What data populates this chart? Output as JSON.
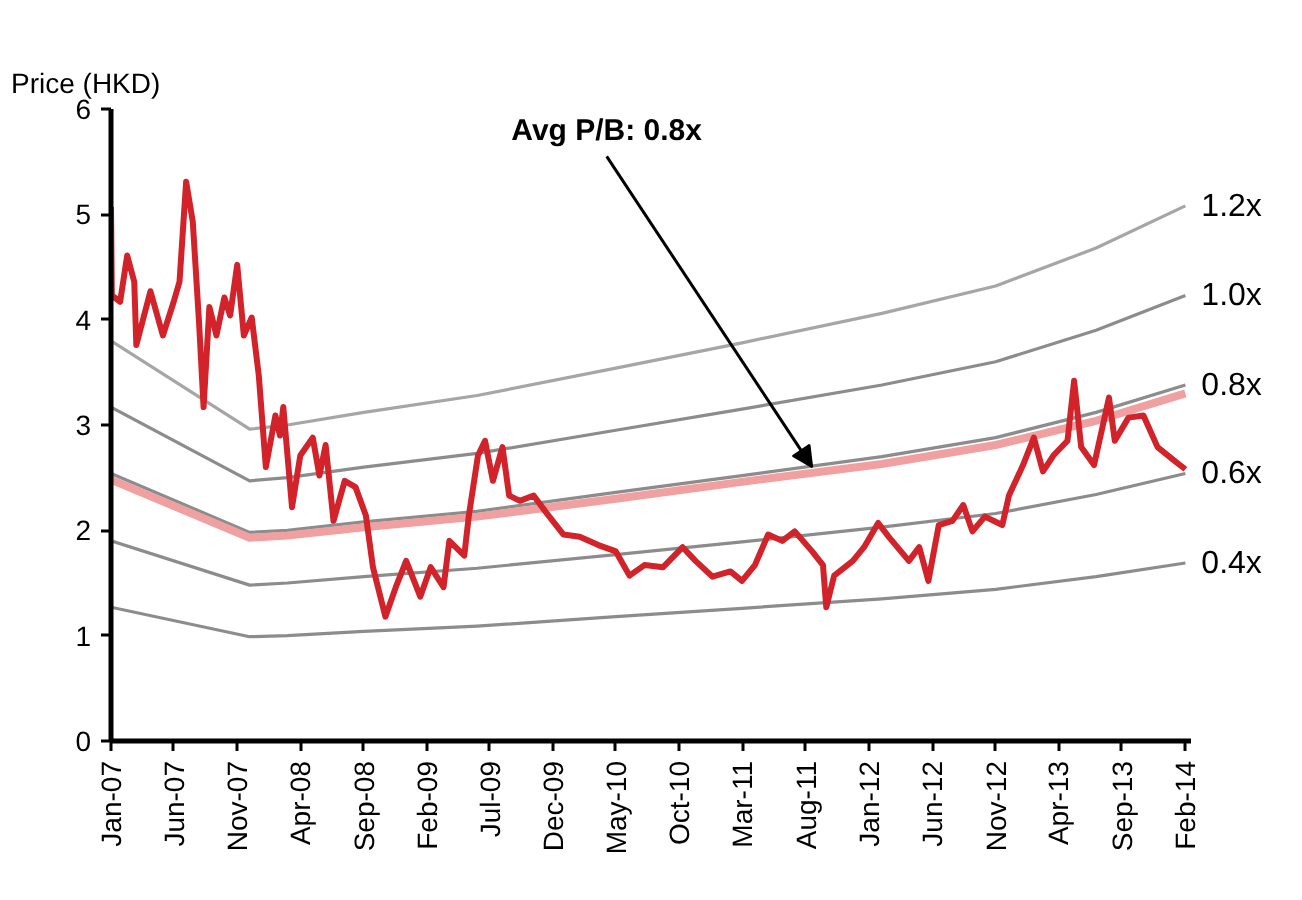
{
  "chart_data": {
    "type": "line",
    "ylabel": "Price (HKD)",
    "xlim": [
      "2007-01-01",
      "2014-02-15"
    ],
    "ylim": [
      0,
      6
    ],
    "yticks": [
      0,
      1,
      2,
      3,
      4,
      5,
      6
    ],
    "xticks": [
      {
        "value": "2007-01-01",
        "label": "Jan-07"
      },
      {
        "value": "2007-06-01",
        "label": "Jun-07"
      },
      {
        "value": "2007-11-01",
        "label": "Nov-07"
      },
      {
        "value": "2008-04-01",
        "label": "Apr-08"
      },
      {
        "value": "2008-09-01",
        "label": "Sep-08"
      },
      {
        "value": "2009-02-01",
        "label": "Feb-09"
      },
      {
        "value": "2009-07-01",
        "label": "Jul-09"
      },
      {
        "value": "2009-12-01",
        "label": "Dec-09"
      },
      {
        "value": "2010-05-01",
        "label": "May-10"
      },
      {
        "value": "2010-10-01",
        "label": "Oct-10"
      },
      {
        "value": "2011-03-01",
        "label": "Mar-11"
      },
      {
        "value": "2011-08-01",
        "label": "Aug-11"
      },
      {
        "value": "2012-01-01",
        "label": "Jan-12"
      },
      {
        "value": "2012-06-01",
        "label": "Jun-12"
      },
      {
        "value": "2012-11-01",
        "label": "Nov-12"
      },
      {
        "value": "2013-04-01",
        "label": "Apr-13"
      },
      {
        "value": "2013-09-01",
        "label": "Sep-13"
      },
      {
        "value": "2014-02-01",
        "label": "Feb-14"
      }
    ],
    "grid": false,
    "line_style": "solid",
    "annotations": [
      {
        "text": "Avg P/B: 0.8x",
        "x": "2011-08-17",
        "y": 2.6
      }
    ],
    "series": [
      {
        "name": "1.2x",
        "color": "#a6a6a6",
        "x": [
          "2007-01-01",
          "2007-12-01",
          "2008-03-01",
          "2008-09-01",
          "2009-06-01",
          "2010-05-01",
          "2011-03-01",
          "2012-02-01",
          "2012-11-01",
          "2013-07-01",
          "2014-02-01"
        ],
        "values": [
          3.8,
          2.96,
          3.0,
          3.12,
          3.28,
          3.54,
          3.78,
          4.06,
          4.32,
          4.68,
          5.08
        ]
      },
      {
        "name": "1.0x",
        "color": "#8c8c8c",
        "x": [
          "2007-01-01",
          "2007-12-01",
          "2008-03-01",
          "2008-09-01",
          "2009-06-01",
          "2010-05-01",
          "2011-03-01",
          "2012-02-01",
          "2012-11-01",
          "2013-07-01",
          "2014-02-01"
        ],
        "values": [
          3.17,
          2.47,
          2.5,
          2.6,
          2.73,
          2.95,
          3.15,
          3.38,
          3.6,
          3.9,
          4.23
        ]
      },
      {
        "name": "0.8x",
        "color": "#8c8c8c",
        "x": [
          "2007-01-01",
          "2007-12-01",
          "2008-03-01",
          "2008-09-01",
          "2009-06-01",
          "2010-05-01",
          "2011-03-01",
          "2012-02-01",
          "2012-11-01",
          "2013-07-01",
          "2014-02-01"
        ],
        "values": [
          2.54,
          1.98,
          2.0,
          2.08,
          2.18,
          2.36,
          2.52,
          2.7,
          2.88,
          3.12,
          3.38
        ]
      },
      {
        "name": "0.6x",
        "color": "#8c8c8c",
        "x": [
          "2007-01-01",
          "2007-12-01",
          "2008-03-01",
          "2008-09-01",
          "2009-06-01",
          "2010-05-01",
          "2011-03-01",
          "2012-02-01",
          "2012-11-01",
          "2013-07-01",
          "2014-02-01"
        ],
        "values": [
          1.9,
          1.48,
          1.5,
          1.56,
          1.64,
          1.77,
          1.89,
          2.03,
          2.16,
          2.34,
          2.54
        ]
      },
      {
        "name": "0.4x",
        "color": "#8c8c8c",
        "x": [
          "2007-01-01",
          "2007-12-01",
          "2008-03-01",
          "2008-09-01",
          "2009-06-01",
          "2010-05-01",
          "2011-03-01",
          "2012-02-01",
          "2012-11-01",
          "2013-07-01",
          "2014-02-01"
        ],
        "values": [
          1.27,
          0.99,
          1.0,
          1.04,
          1.09,
          1.18,
          1.26,
          1.35,
          1.44,
          1.56,
          1.69
        ]
      },
      {
        "color": "#f0a0a0",
        "x": [
          "2007-01-01",
          "2007-12-01",
          "2008-03-01",
          "2008-09-01",
          "2009-06-01",
          "2010-05-01",
          "2011-03-01",
          "2012-02-01",
          "2012-11-01",
          "2013-07-01",
          "2014-02-01"
        ],
        "values": [
          2.48,
          1.93,
          1.95,
          2.03,
          2.13,
          2.3,
          2.46,
          2.63,
          2.81,
          3.04,
          3.3
        ]
      },
      {
        "color": "#d2232a",
        "x": [
          "2007-01-01",
          "2007-01-03",
          "2007-01-23",
          "2007-02-09",
          "2007-02-26",
          "2007-03-03",
          "2007-04-06",
          "2007-05-06",
          "2007-06-01",
          "2007-06-15",
          "2007-07-01",
          "2007-07-17",
          "2007-08-01",
          "2007-08-12",
          "2007-08-26",
          "2007-09-12",
          "2007-10-01",
          "2007-10-15",
          "2007-11-01",
          "2007-11-17",
          "2007-12-06",
          "2007-12-23",
          "2008-01-09",
          "2008-02-01",
          "2008-02-12",
          "2008-02-20",
          "2008-03-12",
          "2008-04-01",
          "2008-05-01",
          "2008-05-17",
          "2008-06-01",
          "2008-06-20",
          "2008-07-17",
          "2008-08-12",
          "2008-09-06",
          "2008-09-23",
          "2008-10-23",
          "2008-11-17",
          "2008-12-12",
          "2009-01-15",
          "2009-02-09",
          "2009-03-12",
          "2009-03-26",
          "2009-05-01",
          "2009-05-12",
          "2009-06-03",
          "2009-06-20",
          "2009-07-09",
          "2009-08-01",
          "2009-08-17",
          "2009-09-12",
          "2009-10-15",
          "2009-11-12",
          "2009-12-26",
          "2010-02-03",
          "2010-03-20",
          "2010-05-01",
          "2010-06-03",
          "2010-07-09",
          "2010-08-23",
          "2010-10-09",
          "2010-11-09",
          "2010-12-20",
          "2011-02-01",
          "2011-03-01",
          "2011-04-01",
          "2011-05-03",
          "2011-06-06",
          "2011-07-06",
          "2011-08-17",
          "2011-09-12",
          "2011-09-20",
          "2011-10-09",
          "2011-11-23",
          "2011-12-20",
          "2012-01-23",
          "2012-02-17",
          "2012-04-06",
          "2012-05-01",
          "2012-05-23",
          "2012-06-17",
          "2012-07-20",
          "2012-08-15",
          "2012-09-06",
          "2012-10-06",
          "2012-11-17",
          "2012-12-03",
          "2013-01-06",
          "2013-02-01",
          "2013-02-23",
          "2013-03-20",
          "2013-04-23",
          "2013-05-09",
          "2013-05-26",
          "2013-06-26",
          "2013-08-01",
          "2013-08-15",
          "2013-09-17",
          "2013-10-23",
          "2013-11-26",
          "2014-01-06",
          "2014-02-01"
        ],
        "values": [
          5.07,
          4.23,
          4.17,
          4.61,
          4.36,
          3.76,
          4.27,
          3.85,
          4.17,
          4.36,
          5.31,
          4.93,
          3.98,
          3.17,
          4.12,
          3.85,
          4.21,
          4.04,
          4.52,
          3.85,
          4.02,
          3.47,
          2.6,
          3.09,
          2.9,
          3.17,
          2.22,
          2.71,
          2.88,
          2.52,
          2.81,
          2.09,
          2.47,
          2.41,
          2.14,
          1.65,
          1.18,
          1.46,
          1.71,
          1.37,
          1.65,
          1.46,
          1.9,
          1.76,
          2.14,
          2.71,
          2.85,
          2.47,
          2.79,
          2.33,
          2.28,
          2.33,
          2.18,
          1.96,
          1.94,
          1.86,
          1.8,
          1.57,
          1.67,
          1.65,
          1.84,
          1.71,
          1.56,
          1.61,
          1.52,
          1.67,
          1.96,
          1.9,
          1.99,
          1.8,
          1.67,
          1.27,
          1.57,
          1.71,
          1.84,
          2.07,
          1.94,
          1.71,
          1.84,
          1.52,
          2.05,
          2.09,
          2.24,
          1.99,
          2.13,
          2.05,
          2.33,
          2.62,
          2.88,
          2.56,
          2.71,
          2.85,
          3.42,
          2.79,
          2.62,
          3.26,
          2.85,
          3.07,
          3.09,
          2.79,
          2.66,
          2.58
        ]
      }
    ]
  }
}
